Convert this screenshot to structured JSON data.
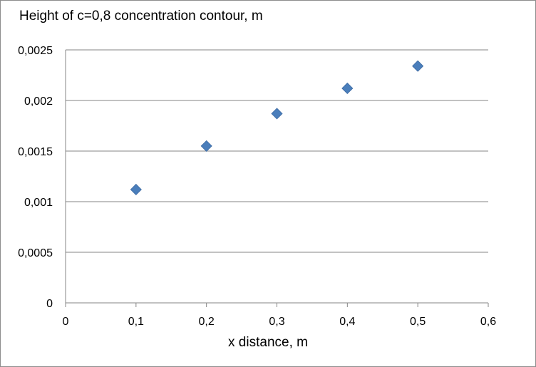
{
  "chart_data": {
    "type": "scatter",
    "title": "",
    "ylabel": "Height of c=0,8 concentration contour, m",
    "xlabel": "x distance, m",
    "x": [
      0.1,
      0.2,
      0.3,
      0.4,
      0.5
    ],
    "y": [
      0.00112,
      0.00155,
      0.00187,
      0.00212,
      0.00234
    ],
    "xlim": [
      0,
      0.6
    ],
    "ylim": [
      0,
      0.0025
    ],
    "xticks": [
      "0",
      "0,1",
      "0,2",
      "0,3",
      "0,4",
      "0,5",
      "0,6"
    ],
    "yticks": [
      "0",
      "0,0005",
      "0,001",
      "0,0015",
      "0,002",
      "0,0025"
    ],
    "grid": "horizontal",
    "marker": "diamond",
    "marker_color": "#4a7ebb",
    "legend": "none"
  }
}
